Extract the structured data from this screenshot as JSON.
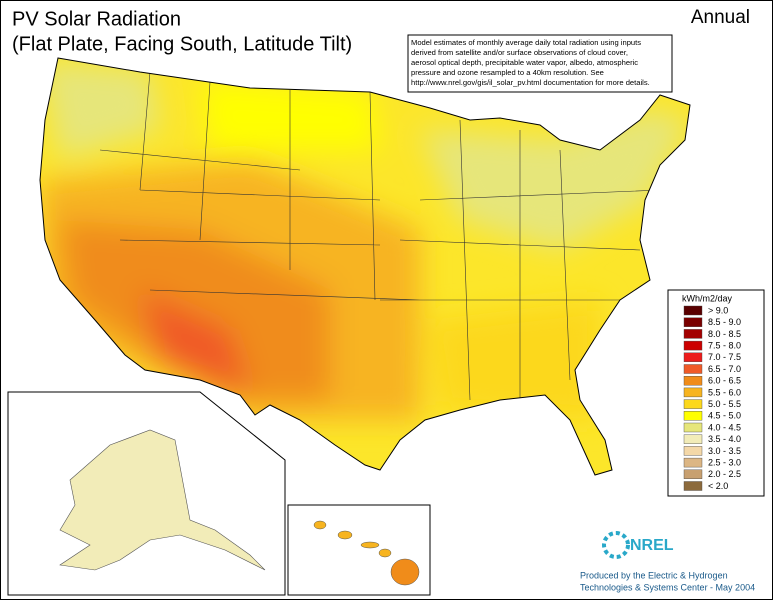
{
  "title": [
    "PV Solar Radiation",
    "(Flat Plate, Facing South, Latitude Tilt)"
  ],
  "period": "Annual",
  "note": [
    "Model estimates of monthly average daily total radiation using inputs",
    "derived from satellite and/or surface observations of cloud cover,",
    "aerosol optical depth, precipitable water vapor, albedo, atmospheric",
    "pressure and ozone resampled to a 40km resolution.  See",
    "http://www.nrel.gov/gis/il_solar_pv.html documentation for more details."
  ],
  "legend": {
    "title": "kWh/m2/day",
    "items": [
      {
        "label": "> 9.0",
        "color": "#5a0000"
      },
      {
        "label": "8.5 - 9.0",
        "color": "#7a0000"
      },
      {
        "label": "8.0 - 8.5",
        "color": "#a30000"
      },
      {
        "label": "7.5 - 8.0",
        "color": "#cc0000"
      },
      {
        "label": "7.0 - 7.5",
        "color": "#ec1c1c"
      },
      {
        "label": "6.5 - 7.0",
        "color": "#f05a28"
      },
      {
        "label": "6.0 - 6.5",
        "color": "#f08c1a"
      },
      {
        "label": "5.5 - 6.0",
        "color": "#f7b420"
      },
      {
        "label": "5.0 - 5.5",
        "color": "#fcd81c"
      },
      {
        "label": "4.5 - 5.0",
        "color": "#ffff00"
      },
      {
        "label": "4.0 - 4.5",
        "color": "#e6e67a"
      },
      {
        "label": "3.5 - 4.0",
        "color": "#f2ecb8"
      },
      {
        "label": "3.0 - 3.5",
        "color": "#f4d8a8"
      },
      {
        "label": "2.5 - 3.0",
        "color": "#dcb684"
      },
      {
        "label": "2.0 - 2.5",
        "color": "#c8a070"
      },
      {
        "label": "< 2.0",
        "color": "#8c6a3c"
      }
    ]
  },
  "logo": "NREL",
  "credit": [
    "Produced by the Electric & Hydrogen",
    "Technologies & Systems Center - May 2004"
  ]
}
